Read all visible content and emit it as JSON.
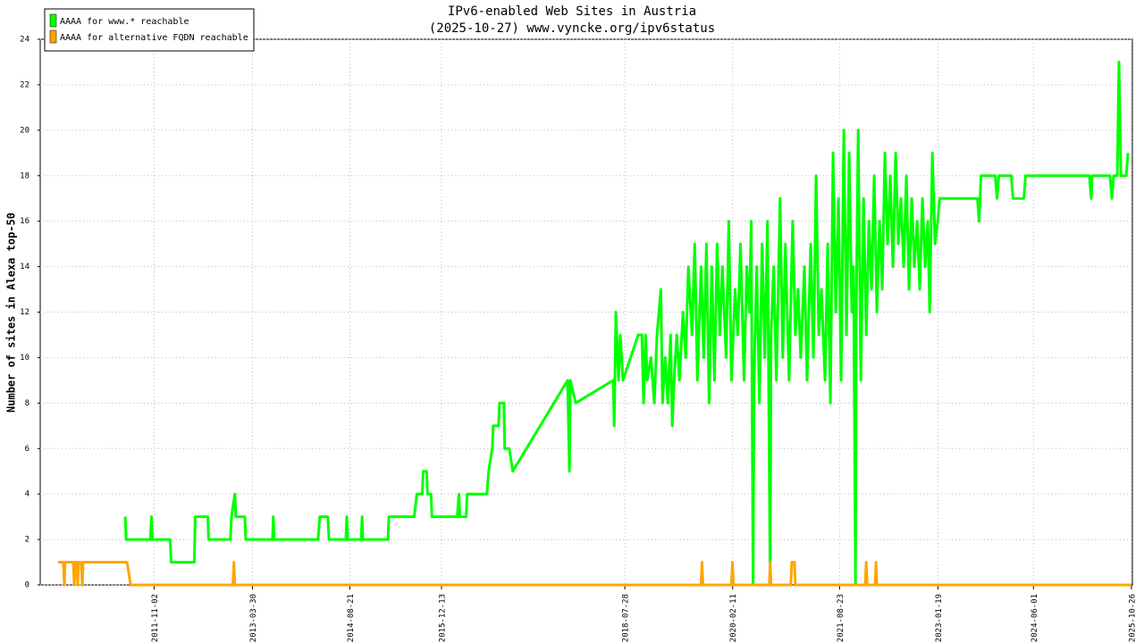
{
  "chart_data": {
    "type": "line",
    "title": "IPv6-enabled Web Sites in Austria",
    "subtitle": "(2025-10-27) www.vyncke.org/ipv6status",
    "ylabel": "Number of sites in Alexa top-50",
    "xlim": [
      "2010-03-17",
      "2025-10-31"
    ],
    "xticks": [
      "2011-11-02",
      "2013-03-30",
      "2014-08-21",
      "2015-12-13",
      "2018-07-28",
      "2020-02-11",
      "2021-08-23",
      "2023-01-19",
      "2024-06-01",
      "2025-10-26"
    ],
    "ylim": [
      0,
      24
    ],
    "yticks": [
      0,
      2,
      4,
      6,
      8,
      10,
      12,
      14,
      16,
      18,
      20,
      22,
      24
    ],
    "grid": true,
    "legend": "upper left",
    "series": [
      {
        "name": "AAAA for www.* reachable",
        "color": "#00ff00",
        "x": [
          "2011-06-04",
          "2011-06-09",
          "2011-10-14",
          "2011-10-19",
          "2011-10-24",
          "2012-01-25",
          "2012-01-30",
          "2012-05-30",
          "2012-06-04",
          "2012-08-09",
          "2012-08-13",
          "2012-12-05",
          "2012-12-10",
          "2012-12-28",
          "2013-01-02",
          "2013-02-18",
          "2013-02-23",
          "2013-07-13",
          "2013-07-17",
          "2013-07-22",
          "2014-03-08",
          "2014-03-17",
          "2014-04-28",
          "2014-05-04",
          "2014-07-31",
          "2014-08-05",
          "2014-08-10",
          "2014-10-19",
          "2014-10-24",
          "2014-10-28",
          "2015-03-08",
          "2015-03-13",
          "2015-07-23",
          "2015-08-06",
          "2015-09-03",
          "2015-09-08",
          "2015-09-26",
          "2015-10-01",
          "2015-10-19",
          "2015-10-24",
          "2016-03-04",
          "2016-03-13",
          "2016-03-18",
          "2016-04-20",
          "2016-04-25",
          "2016-08-06",
          "2016-08-15",
          "2016-09-03",
          "2016-09-08",
          "2016-10-06",
          "2016-10-11",
          "2016-11-03",
          "2016-11-07",
          "2016-12-01",
          "2016-12-19",
          "2017-10-02",
          "2017-10-11",
          "2017-10-16",
          "2017-11-13",
          "2018-05-28",
          "2018-06-02",
          "2018-06-11",
          "2018-06-25",
          "2018-07-04",
          "2018-07-18",
          "2018-10-06",
          "2018-10-25",
          "2018-11-03",
          "2018-11-13",
          "2018-11-22",
          "2018-12-11",
          "2018-12-29",
          "2019-01-12",
          "2019-02-01",
          "2019-02-10",
          "2019-02-24",
          "2019-03-10",
          "2019-03-24",
          "2019-04-02",
          "2019-04-11",
          "2019-04-25",
          "2019-05-09",
          "2019-05-28",
          "2019-06-11",
          "2019-06-25",
          "2019-07-14",
          "2019-07-28",
          "2019-08-11",
          "2019-08-30",
          "2019-09-13",
          "2019-09-27",
          "2019-10-11",
          "2019-10-25",
          "2019-11-08",
          "2019-11-22",
          "2019-12-06",
          "2019-12-20",
          "2020-01-08",
          "2020-01-22",
          "2020-02-05",
          "2020-02-24",
          "2020-03-09",
          "2020-03-23",
          "2020-04-11",
          "2020-04-25",
          "2020-05-09",
          "2020-05-18",
          "2020-05-28",
          "2020-06-02",
          "2020-06-16",
          "2020-06-30",
          "2020-07-14",
          "2020-07-28",
          "2020-08-11",
          "2020-08-25",
          "2020-08-30",
          "2020-09-13",
          "2020-09-27",
          "2020-10-16",
          "2020-10-30",
          "2020-11-13",
          "2020-12-02",
          "2020-12-21",
          "2021-01-04",
          "2021-01-18",
          "2021-02-01",
          "2021-02-20",
          "2021-03-06",
          "2021-03-25",
          "2021-04-08",
          "2021-04-22",
          "2021-05-06",
          "2021-05-20",
          "2021-06-08",
          "2021-06-22",
          "2021-07-06",
          "2021-07-20",
          "2021-08-03",
          "2021-08-17",
          "2021-08-31",
          "2021-09-14",
          "2021-09-28",
          "2021-10-12",
          "2021-10-26",
          "2021-11-04",
          "2021-11-14",
          "2021-11-18",
          "2021-11-28",
          "2021-12-12",
          "2021-12-26",
          "2022-01-09",
          "2022-01-23",
          "2022-02-06",
          "2022-02-20",
          "2022-03-06",
          "2022-03-20",
          "2022-04-03",
          "2022-04-17",
          "2022-05-01",
          "2022-05-15",
          "2022-05-29",
          "2022-06-12",
          "2022-06-26",
          "2022-07-10",
          "2022-07-24",
          "2022-08-07",
          "2022-08-21",
          "2022-09-04",
          "2022-09-18",
          "2022-10-02",
          "2022-10-16",
          "2022-10-30",
          "2022-11-13",
          "2022-11-27",
          "2022-12-07",
          "2022-12-21",
          "2023-01-04",
          "2023-01-18",
          "2023-01-28",
          "2023-08-13",
          "2023-08-22",
          "2023-09-01",
          "2023-11-14",
          "2023-11-24",
          "2023-12-03",
          "2024-02-06",
          "2024-02-15",
          "2024-04-12",
          "2024-04-21",
          "2025-03-20",
          "2025-03-30",
          "2025-04-04",
          "2025-07-06",
          "2025-07-16",
          "2025-07-25",
          "2025-08-13",
          "2025-08-22",
          "2025-09-01",
          "2025-09-29",
          "2025-10-08"
        ],
        "values": [
          3,
          2,
          2,
          3,
          2,
          2,
          1,
          1,
          3,
          3,
          2,
          2,
          3,
          4,
          3,
          3,
          2,
          2,
          3,
          2,
          2,
          3,
          3,
          2,
          2,
          3,
          2,
          2,
          3,
          2,
          2,
          3,
          3,
          4,
          4,
          5,
          5,
          4,
          4,
          3,
          3,
          4,
          3,
          3,
          4,
          4,
          5,
          6,
          7,
          7,
          8,
          8,
          6,
          6,
          5,
          9,
          5,
          9,
          8,
          9,
          7,
          12,
          9,
          11,
          9,
          11,
          11,
          8,
          11,
          9,
          10,
          8,
          11,
          13,
          8,
          10,
          8,
          11,
          7,
          9,
          11,
          9,
          12,
          10,
          14,
          11,
          15,
          9,
          14,
          10,
          15,
          8,
          14,
          9,
          15,
          11,
          14,
          10,
          16,
          9,
          13,
          11,
          15,
          9,
          14,
          12,
          16,
          0,
          9,
          14,
          8,
          15,
          10,
          16,
          0,
          11,
          14,
          9,
          17,
          10,
          15,
          9,
          16,
          11,
          13,
          10,
          14,
          9,
          15,
          10,
          18,
          11,
          13,
          9,
          15,
          8,
          19,
          12,
          17,
          9,
          20,
          11,
          19,
          12,
          14,
          0,
          12,
          20,
          9,
          17,
          11,
          16,
          13,
          18,
          12,
          16,
          13,
          19,
          15,
          18,
          14,
          19,
          15,
          17,
          14,
          18,
          13,
          17,
          14,
          16,
          13,
          17,
          14,
          16,
          12,
          19,
          15,
          16,
          17,
          17,
          16,
          18,
          18,
          17,
          18,
          18,
          17,
          17,
          18,
          18,
          17,
          18,
          18,
          17,
          18,
          18,
          23,
          18,
          18,
          19
        ]
      },
      {
        "name": "AAAA for alternative FQDN reachable",
        "color": "#ffa500",
        "x": [
          "2010-06-18",
          "2010-07-16",
          "2010-07-21",
          "2010-07-25",
          "2010-09-06",
          "2010-09-11",
          "2010-09-16",
          "2010-09-25",
          "2010-09-29",
          "2010-10-04",
          "2010-10-18",
          "2010-10-23",
          "2010-10-27",
          "2011-06-14",
          "2011-07-02",
          "2012-12-18",
          "2012-12-23",
          "2012-12-28",
          "2019-08-30",
          "2019-09-04",
          "2019-09-09",
          "2020-02-05",
          "2020-02-10",
          "2020-02-15",
          "2020-08-21",
          "2020-08-25",
          "2020-08-30",
          "2020-12-11",
          "2020-12-16",
          "2020-12-30",
          "2021-01-04",
          "2022-01-04",
          "2022-01-09",
          "2022-01-14",
          "2022-02-25",
          "2022-03-01",
          "2022-03-06",
          "2025-10-26"
        ],
        "values": [
          1,
          1,
          0,
          1,
          1,
          0,
          1,
          1,
          0,
          1,
          1,
          0,
          1,
          1,
          0,
          0,
          1,
          0,
          0,
          1,
          0,
          0,
          1,
          0,
          0,
          1,
          0,
          0,
          1,
          1,
          0,
          0,
          1,
          0,
          0,
          1,
          0,
          0
        ]
      }
    ]
  }
}
